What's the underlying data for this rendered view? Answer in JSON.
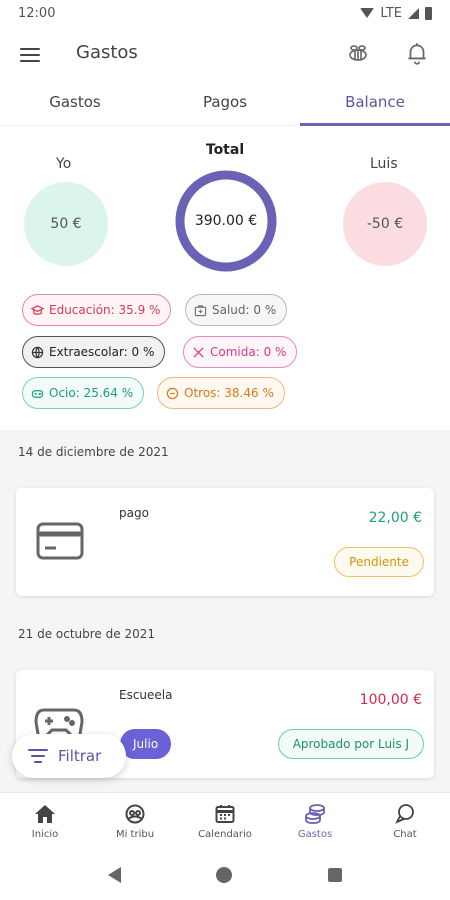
{
  "status_bar": {
    "time": "12:00",
    "network": "LTE"
  },
  "app_bar": {
    "title": "Gastos",
    "icons": [
      "menu-icon",
      "bee-icon",
      "bell-icon"
    ]
  },
  "tabs": [
    {
      "label": "Gastos",
      "active": false
    },
    {
      "label": "Pagos",
      "active": false
    },
    {
      "label": "Balance",
      "active": true
    }
  ],
  "balance": {
    "left_name": "Yo",
    "left_amount": "50 €",
    "total_label": "Total",
    "total_amount": "390.00 €",
    "right_name": "Luis",
    "right_amount": "-50 €"
  },
  "categories": [
    {
      "label": "Educación: 35.9 %",
      "icon": "graduation-icon",
      "color": "#d63a52"
    },
    {
      "label": "Salud: 0 %",
      "icon": "medkit-icon",
      "color": "#8a8a8a"
    },
    {
      "label": "Extraescolar: 0 %",
      "icon": "ball-icon",
      "color": "#333333"
    },
    {
      "label": "Comida: 0 %",
      "icon": "cutlery-icon",
      "color": "#d63a8a"
    },
    {
      "label": "Ocio: 25.64 %",
      "icon": "gamepad-icon",
      "color": "#2aa892"
    },
    {
      "label": "Otros: 38.46 %",
      "icon": "dots-icon",
      "color": "#e08a2a"
    }
  ],
  "entries": [
    {
      "date": "14 de diciembre de 2021",
      "title": "pago",
      "amount": "22,00 €",
      "status": "Pendiente",
      "icon": "credit-card-icon"
    },
    {
      "date": "21 de octubre de 2021",
      "title": "Escueela",
      "amount": "100,00 €",
      "month": "Julio",
      "status": "Aprobado por Luis J",
      "icon": "gamepad-icon"
    }
  ],
  "filter": {
    "label": "Filtrar"
  },
  "bottom_nav": [
    {
      "label": "Inicio",
      "icon": "home-icon",
      "active": false
    },
    {
      "label": "Mi tribu",
      "icon": "tribe-icon",
      "active": false
    },
    {
      "label": "Calendario",
      "icon": "calendar-icon",
      "active": false
    },
    {
      "label": "Gastos",
      "icon": "coins-icon",
      "active": true
    },
    {
      "label": "Chat",
      "icon": "chat-icon",
      "active": false
    }
  ]
}
